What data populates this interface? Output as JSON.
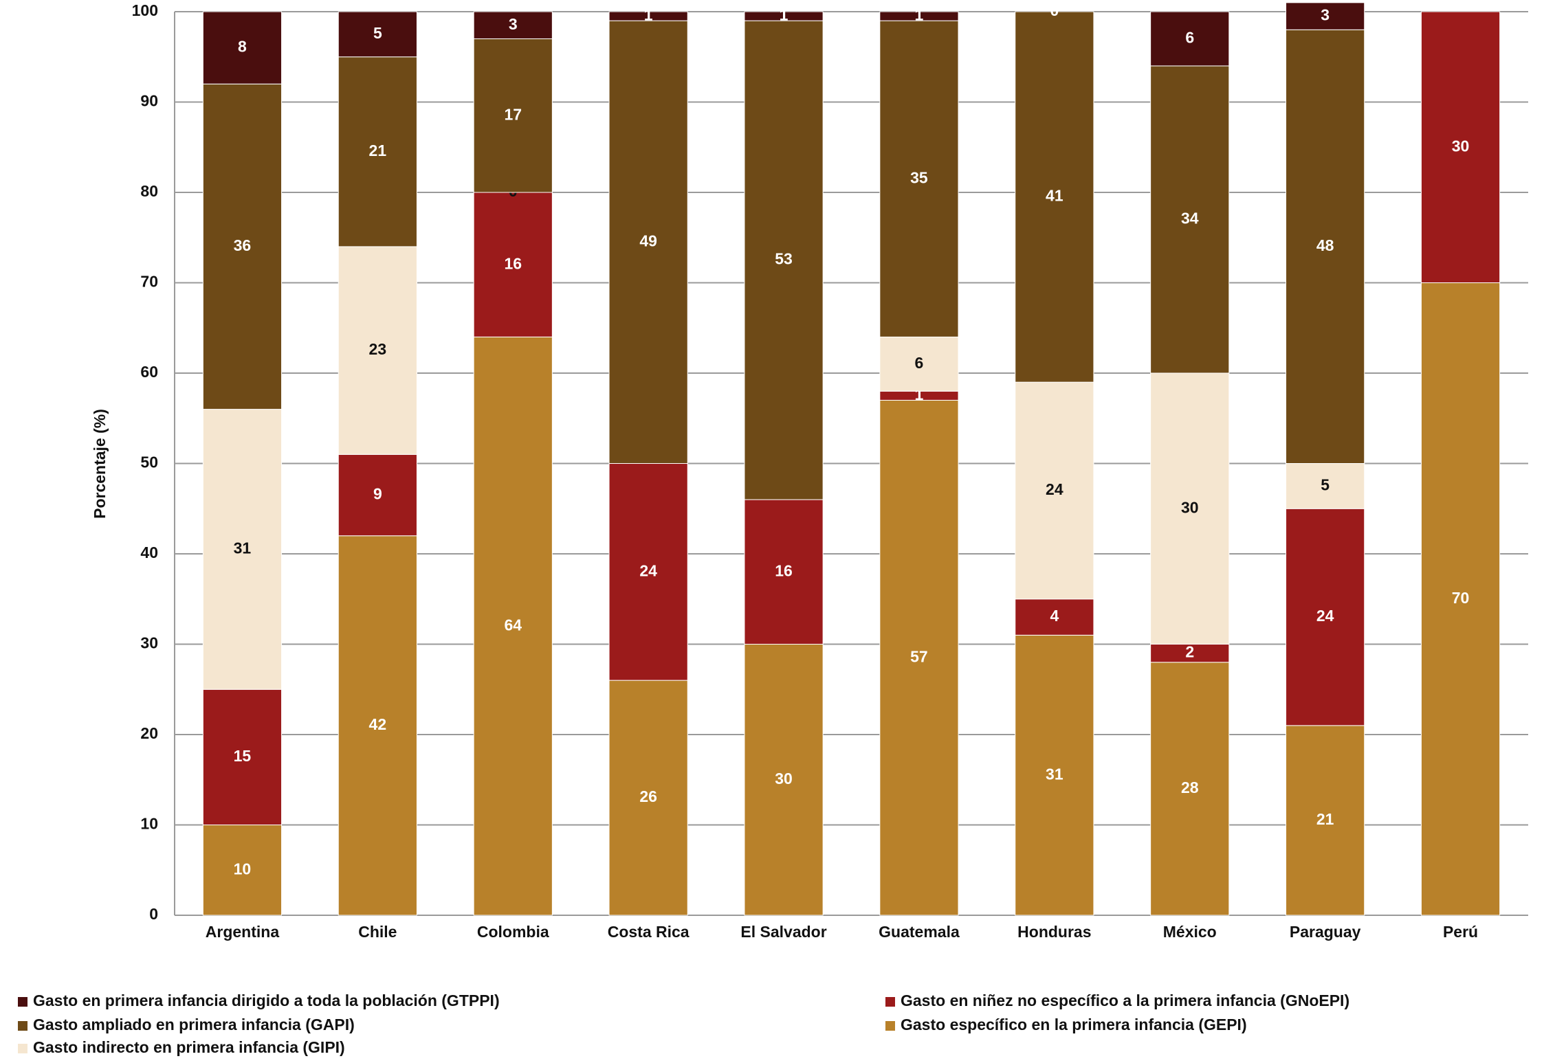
{
  "chart_data": {
    "type": "stacked-bar",
    "ylabel": "Porcentaje (%)",
    "categories": [
      "Argentina",
      "Chile",
      "Colombia",
      "Costa Rica",
      "El Salvador",
      "Guatemala",
      "Honduras",
      "México",
      "Paraguay",
      "Perú"
    ],
    "series": [
      {
        "name": "Gasto específico en la primera infancia (GEPI)",
        "color": "#b8812a",
        "values": [
          10,
          42,
          64,
          26,
          30,
          57,
          31,
          28,
          21,
          70
        ]
      },
      {
        "name": "Gasto en niñez no específico a la primera infancia (GNoEPI)",
        "color": "#9b1b1b",
        "values": [
          15,
          9,
          16,
          24,
          16,
          1,
          4,
          2,
          24,
          30
        ]
      },
      {
        "name": "Gasto indirecto en primera infancia (GIPI)",
        "color": "#f5e6d0",
        "values": [
          31,
          23,
          0,
          null,
          null,
          6,
          24,
          30,
          5,
          null
        ]
      },
      {
        "name": "Gasto ampliado en primera infancia (GAPI)",
        "color": "#6e4a17",
        "values": [
          36,
          21,
          17,
          49,
          53,
          35,
          41,
          34,
          48,
          null
        ]
      },
      {
        "name": "Gasto en primera infancia dirigido a toda la población (GTPPI)",
        "color": "#4a0e0e",
        "values": [
          8,
          5,
          3,
          1,
          1,
          1,
          0,
          6,
          3,
          null
        ]
      }
    ],
    "ylim": [
      0,
      100
    ],
    "yticks": [
      0,
      10,
      20,
      30,
      40,
      50,
      60,
      70,
      80,
      90,
      100
    ],
    "grid": true
  }
}
